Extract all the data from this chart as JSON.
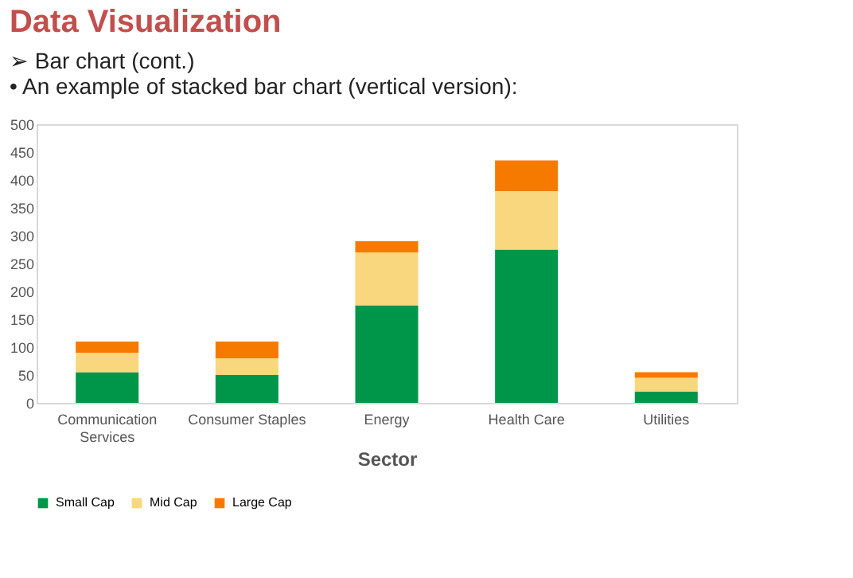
{
  "chart_data": {
    "type": "bar",
    "title": "Data Visualization",
    "subtitle": "➢ Bar chart (cont.)",
    "annotations": [
      "• An example of stacked bar chart (vertical version):"
    ],
    "xlabel": "Sector",
    "categories": [
      "Communication Services",
      "Consumer Staples",
      "Energy",
      "Health Care",
      "Utilities"
    ],
    "stacked": true,
    "series": [
      {
        "name": "Small Cap",
        "color": "#00964a",
        "values": [
          55,
          50,
          175,
          275,
          20
        ]
      },
      {
        "name": "Mid Cap",
        "color": "#f9d77e",
        "values": [
          35,
          30,
          95,
          105,
          25
        ]
      },
      {
        "name": "Large Cap",
        "color": "#f77a00",
        "values": [
          20,
          30,
          20,
          55,
          10
        ]
      }
    ],
    "ylim": [
      0,
      500
    ],
    "yticks": [
      0,
      50,
      100,
      150,
      200,
      250,
      300,
      350,
      400,
      450,
      500
    ],
    "grid": false,
    "legend": "bottom"
  }
}
